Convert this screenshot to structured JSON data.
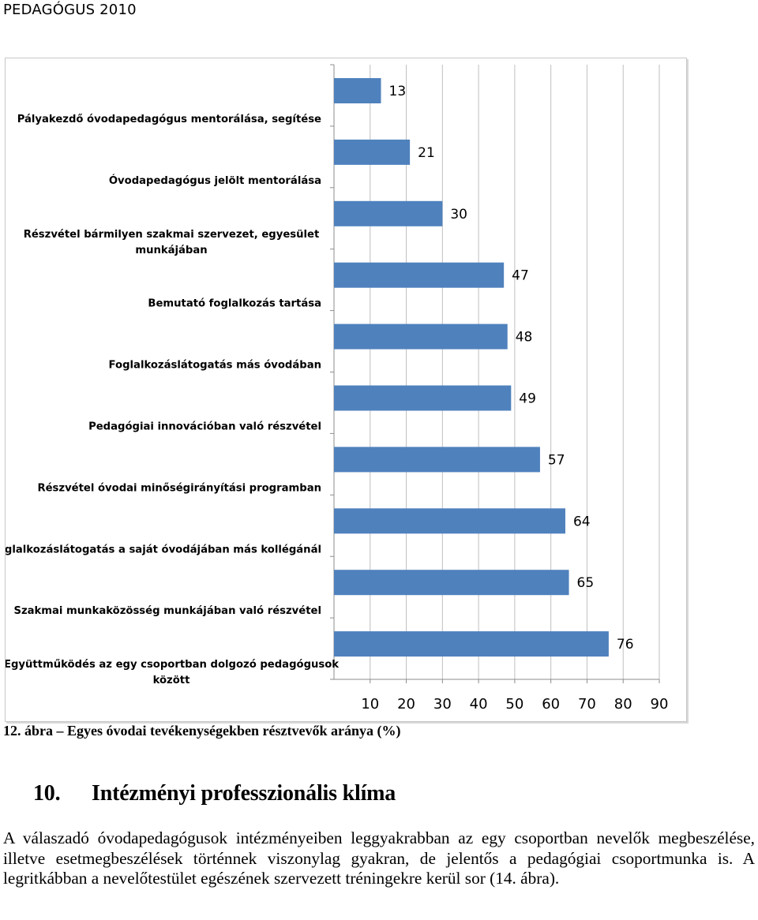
{
  "header": {
    "text": "PEDAGÓGUS 2010"
  },
  "chart_data": {
    "type": "bar",
    "orientation": "horizontal",
    "categories": [
      "Pályakezdő óvodapedagógus mentorálása, segítése",
      "Óvodapedagógus jelölt mentorálása",
      "Részvétel bármilyen szakmai szervezet, egyesület munkájában",
      "Bemutató foglalkozás tartása",
      "Foglalkozáslátogatás más óvodában",
      "Pedagógiai innovációban való részvétel",
      "Részvétel óvodai minőségirányítási programban",
      "Foglalkozáslátogatás a saját óvodájában más kollégánál",
      "Szakmai munkaközösség munkájában való részvétel",
      "Együttműködés az egy csoportban dolgozó pedagógusok között"
    ],
    "values": [
      13,
      21,
      30,
      47,
      48,
      49,
      57,
      64,
      65,
      76
    ],
    "xticks": [
      "10",
      "20",
      "30",
      "40",
      "50",
      "60",
      "70",
      "80",
      "90"
    ],
    "xlim": [
      0,
      90
    ],
    "bar_color": "#4f81bd",
    "grid": true,
    "legend": "none"
  },
  "caption": "12. ábra – Egyes óvodai tevékenységekben résztvevők aránya (%)",
  "section": {
    "number": "10.",
    "title": "Intézményi professzionális klíma"
  },
  "paragraph": "A válaszadó óvodapedagógusok intézményeiben leggyakrabban az egy csoportban nevelők megbeszélése, illetve esetmegbeszélések történnek viszonylag gyakran, de jelentős a pedagógiai csoportmunka is. A legritkábban a nevelőtestület egészének szervezett tréningekre kerül sor (14. ábra)."
}
